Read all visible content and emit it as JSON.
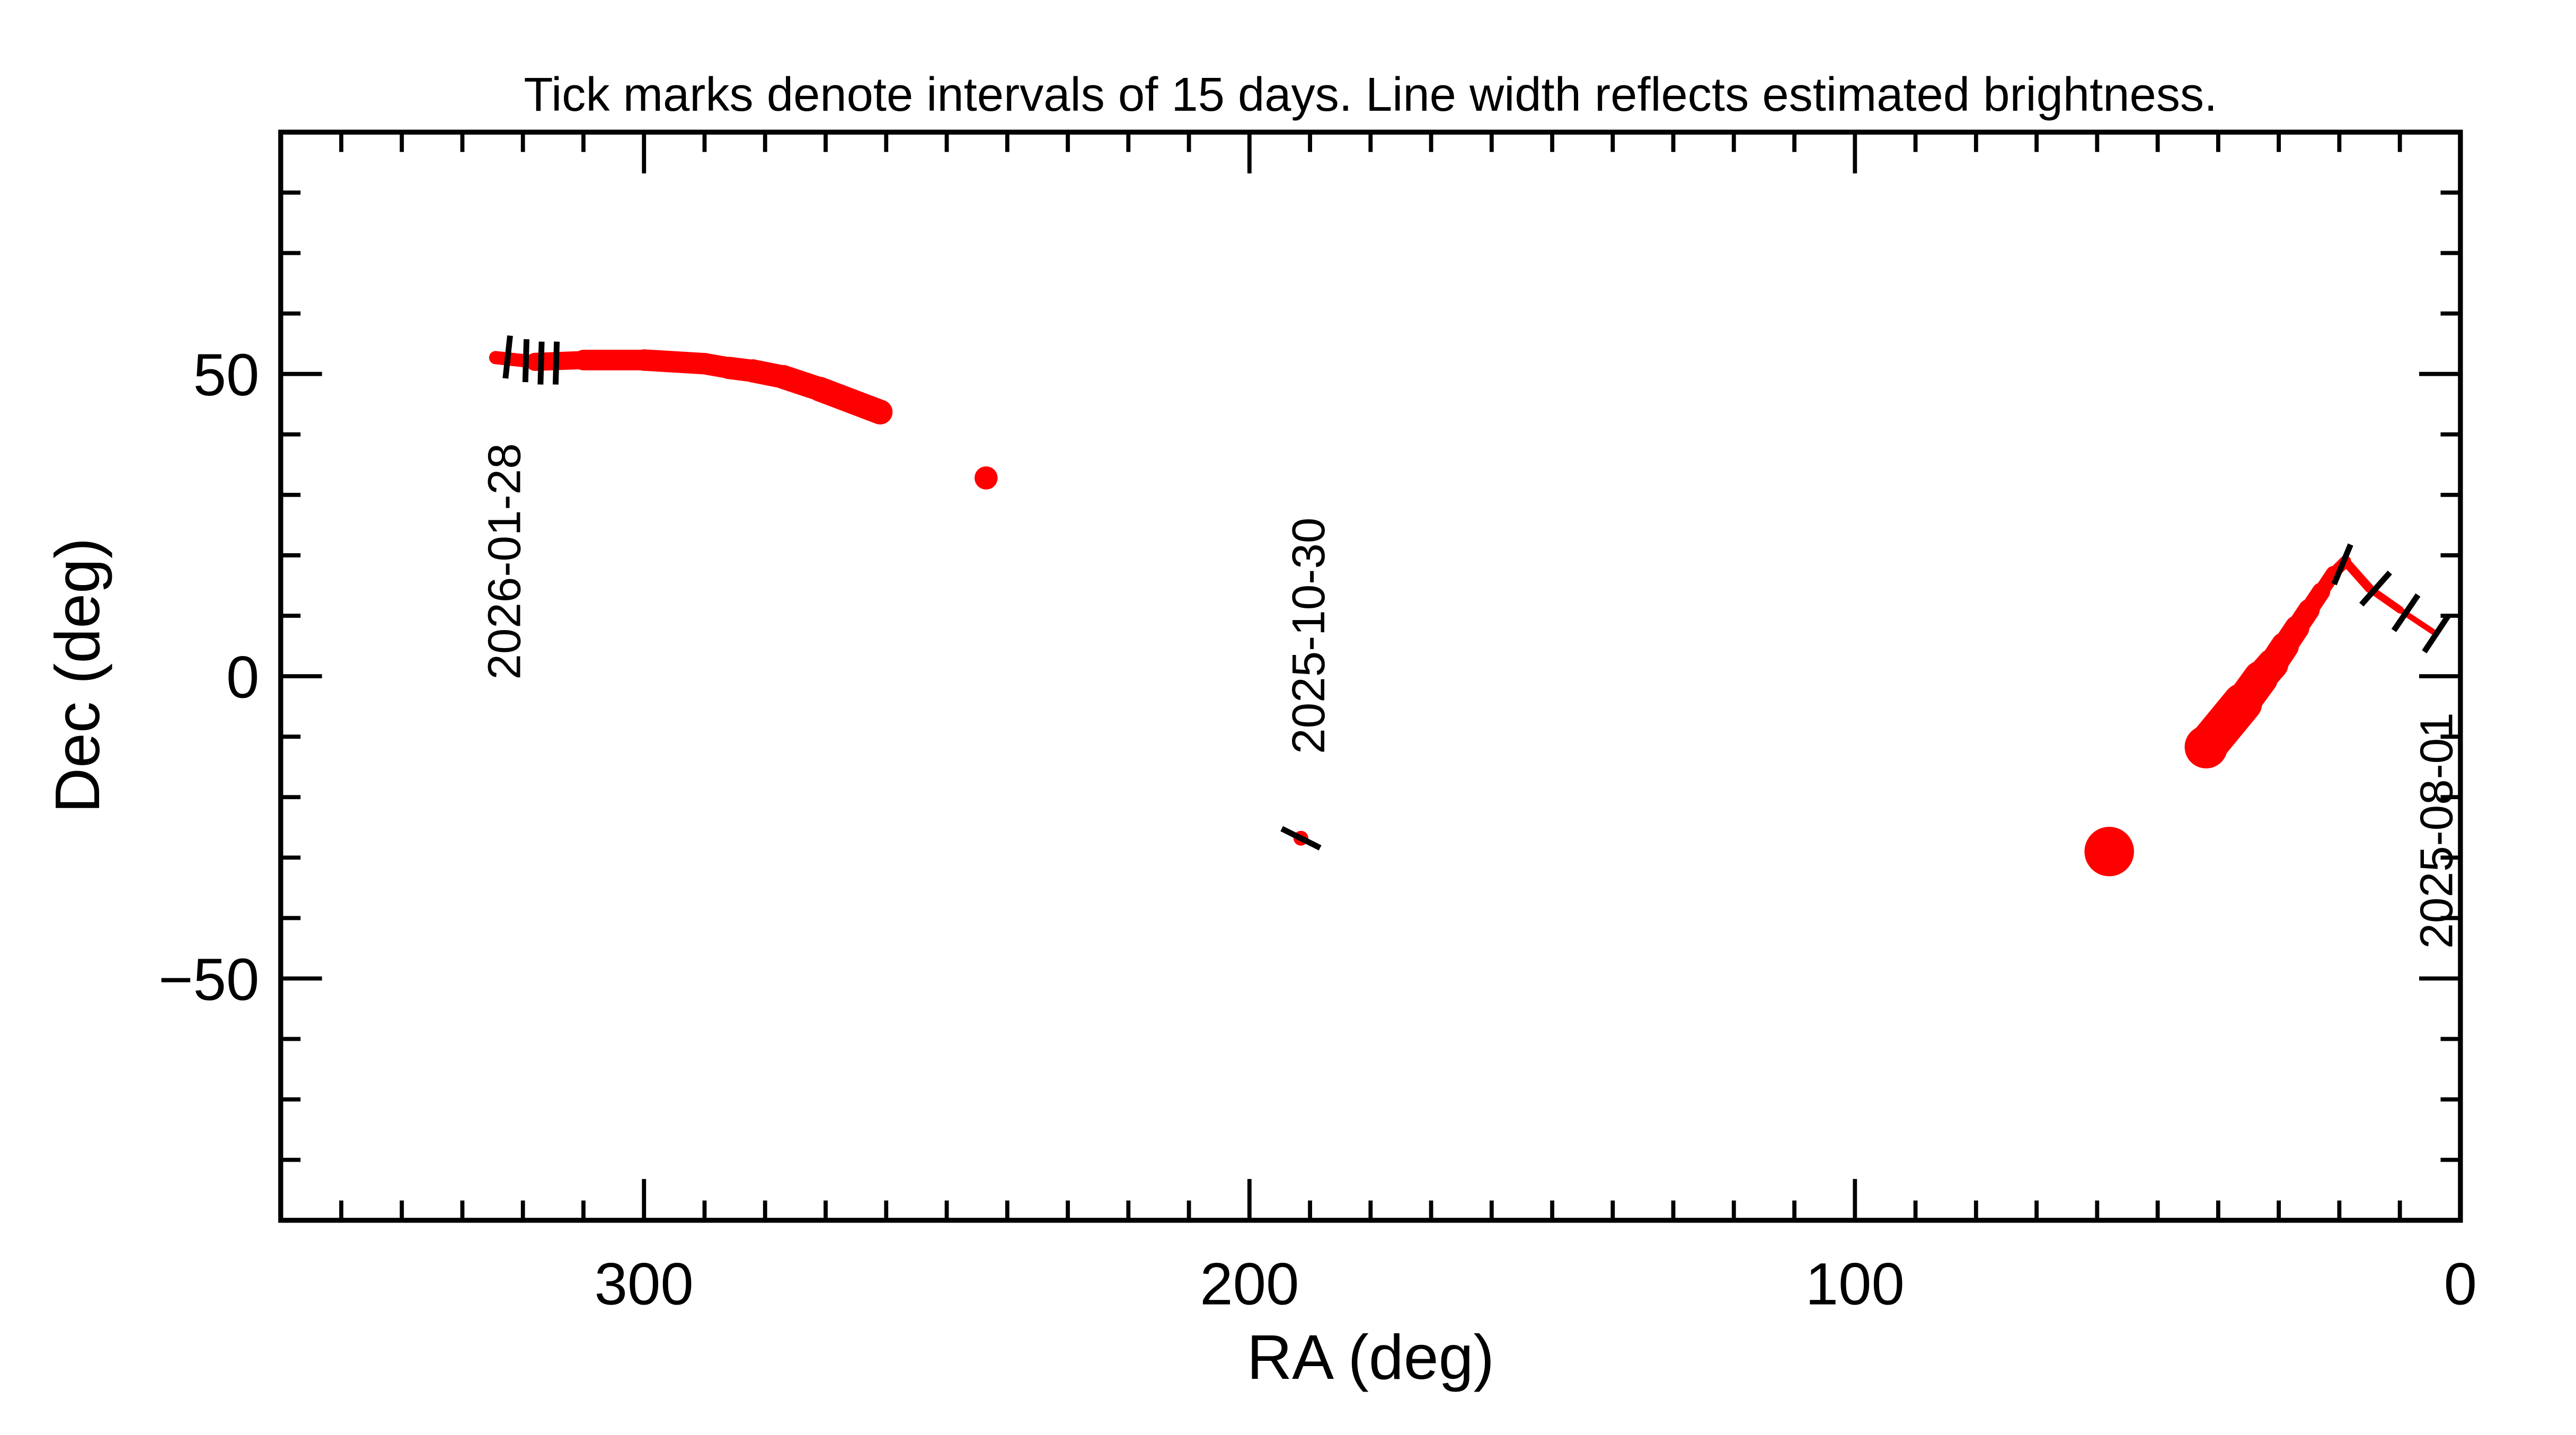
{
  "chart_data": {
    "type": "line",
    "title": "Tick marks denote intervals of 15 days.  Line width reflects estimated brightness.",
    "xlabel": "RA (deg)",
    "ylabel": "Dec (deg)",
    "xlim": [
      360,
      0
    ],
    "ylim": [
      -90,
      90
    ],
    "x_reversed": true,
    "x_major_ticks": [
      300,
      200,
      100,
      0
    ],
    "x_tick_labels": [
      "300",
      "200",
      "100",
      "0"
    ],
    "x_minor_step": 10,
    "y_major_ticks": [
      50,
      0,
      -50
    ],
    "y_tick_labels": [
      "50",
      "0",
      "−50"
    ],
    "y_minor_step": 10,
    "grid": false,
    "colors": {
      "track": "#ff0000",
      "ticks": "#000000",
      "axes": "#000000"
    },
    "track": {
      "ra": [
        4,
        10,
        15,
        19,
        21,
        23,
        25,
        27,
        29,
        31,
        33,
        36,
        42,
        58,
        191.5,
        243.5,
        261,
        271,
        277,
        282,
        286,
        290,
        300,
        310,
        318,
        324.5
      ],
      "dec": [
        7,
        11,
        14.5,
        19,
        17,
        14,
        11,
        8,
        5,
        2,
        -0.3,
        -4.4,
        -11.7,
        -29,
        -26.8,
        32.8,
        43.7,
        47.5,
        49.5,
        50.5,
        51,
        51.7,
        52.3,
        52.3,
        52,
        52.7
      ],
      "relative_brightness_width": [
        3,
        4,
        5,
        6,
        8,
        10,
        12,
        14,
        16,
        18,
        20,
        22,
        26,
        30,
        9,
        14,
        15,
        15,
        14,
        14,
        13,
        13,
        13,
        12,
        10,
        6
      ]
    },
    "interval_ticks": {
      "ra": [
        4,
        9,
        14,
        19.5,
        191.5,
        314.5,
        317,
        319.5,
        322.5
      ],
      "dec": [
        7,
        10.5,
        14.5,
        18.5,
        -26.8,
        51.8,
        51.8,
        52.2,
        52.8
      ]
    },
    "date_labels": [
      {
        "text": "2025-08-01",
        "ra": 4,
        "dec": 7
      },
      {
        "text": "2025-10-30",
        "ra": 191.5,
        "dec": -26.8
      },
      {
        "text": "2026-01-28",
        "ra": 324.5,
        "dec": 52.7
      }
    ]
  }
}
